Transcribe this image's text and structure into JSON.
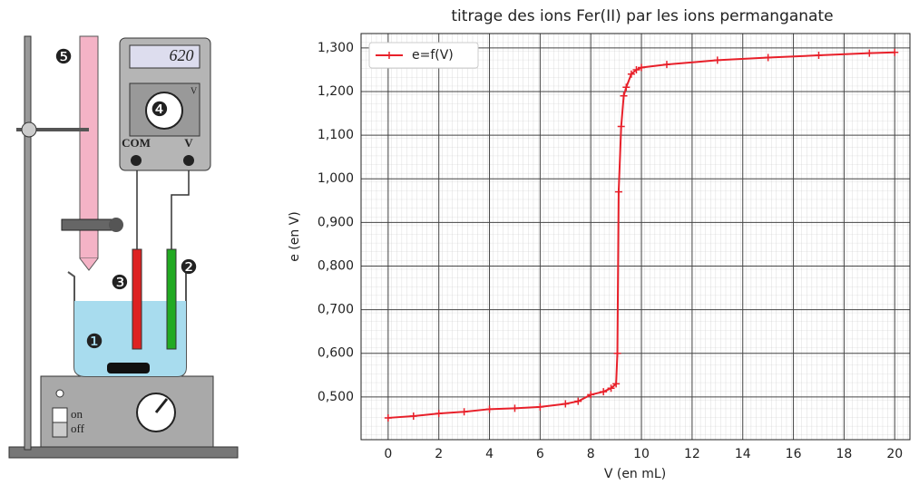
{
  "diagram": {
    "display": "620",
    "dial_unit": "V",
    "terminals": [
      "COM",
      "V"
    ],
    "switch": [
      "on",
      "off"
    ],
    "markers": [
      "❶",
      "❷",
      "❸",
      "❹",
      "❺"
    ]
  },
  "chart_data": {
    "type": "line",
    "title": "titrage des ions Fer(II) par les ions permanganate",
    "x_label": "V (en mL)",
    "y_label": "e (en V)",
    "x": [
      0,
      1,
      2,
      3,
      4,
      5,
      6,
      7,
      7.5,
      8,
      8.5,
      8.8,
      9.0,
      9.05,
      9.1,
      9.2,
      9.3,
      9.4,
      9.6,
      9.8,
      10,
      11,
      13,
      15,
      17,
      19,
      20
    ],
    "series": [
      {
        "name": "e=f(V)",
        "color": "#e8202a",
        "values": [
          0.452,
          0.456,
          0.462,
          0.466,
          0.472,
          0.474,
          0.477,
          0.484,
          0.49,
          0.505,
          0.512,
          0.52,
          0.53,
          0.6,
          0.97,
          1.12,
          1.19,
          1.21,
          1.24,
          1.25,
          1.255,
          1.262,
          1.272,
          1.278,
          1.283,
          1.288,
          1.29
        ]
      }
    ],
    "xlim": [
      -1.07,
      20.6
    ],
    "ylim": [
      0.402,
      1.333
    ],
    "xticks": [
      0,
      2,
      4,
      6,
      8,
      10,
      12,
      14,
      16,
      18,
      20
    ],
    "yticks": [
      {
        "value": 0.5,
        "label": "0,500"
      },
      {
        "value": 0.6,
        "label": "0,600"
      },
      {
        "value": 0.7,
        "label": "0,700"
      },
      {
        "value": 0.8,
        "label": "0,800"
      },
      {
        "value": 0.9,
        "label": "0,900"
      },
      {
        "value": 1.0,
        "label": "1,000"
      },
      {
        "value": 1.1,
        "label": "1,100"
      },
      {
        "value": 1.2,
        "label": "1,200"
      },
      {
        "value": 1.3,
        "label": "1,300"
      }
    ],
    "grid": true,
    "legend": "upper left"
  }
}
